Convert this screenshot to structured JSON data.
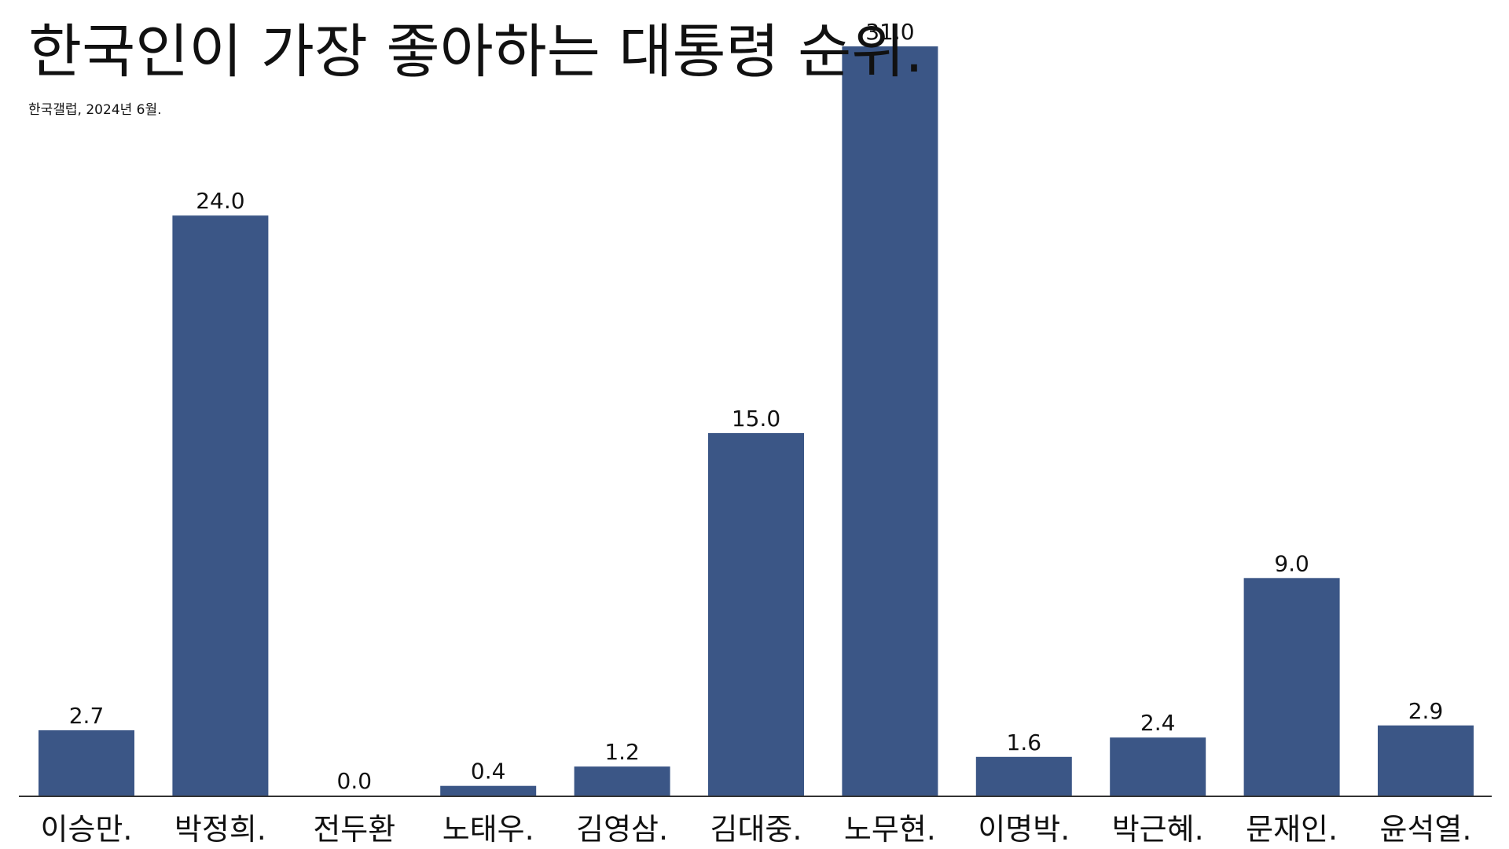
{
  "colors": {
    "bar": "#3b5686",
    "text": "#111111",
    "axis": "#333333",
    "background": "#ffffff"
  },
  "chart_data": {
    "type": "bar",
    "title": "한국인이 가장 좋아하는 대통령 순위.",
    "subtitle": "한국갤럽, 2024년 6월.",
    "xlabel": "",
    "ylabel": "",
    "ylim": [
      0,
      31
    ],
    "grid": false,
    "legend": "none",
    "categories": [
      "이승만.",
      "박정희.",
      "전두환",
      "노태우.",
      "김영삼.",
      "김대중.",
      "노무현.",
      "이명박.",
      "박근혜.",
      "문재인.",
      "윤석열."
    ],
    "values": [
      2.7,
      24.0,
      0.0,
      0.4,
      1.2,
      15.0,
      31.0,
      1.6,
      2.4,
      9.0,
      2.9
    ],
    "value_labels": [
      "2.7",
      "24.0",
      "0.0",
      "0.4",
      "1.2",
      "15.0",
      "31.0",
      "1.6",
      "2.4",
      "9.0",
      "2.9"
    ]
  }
}
